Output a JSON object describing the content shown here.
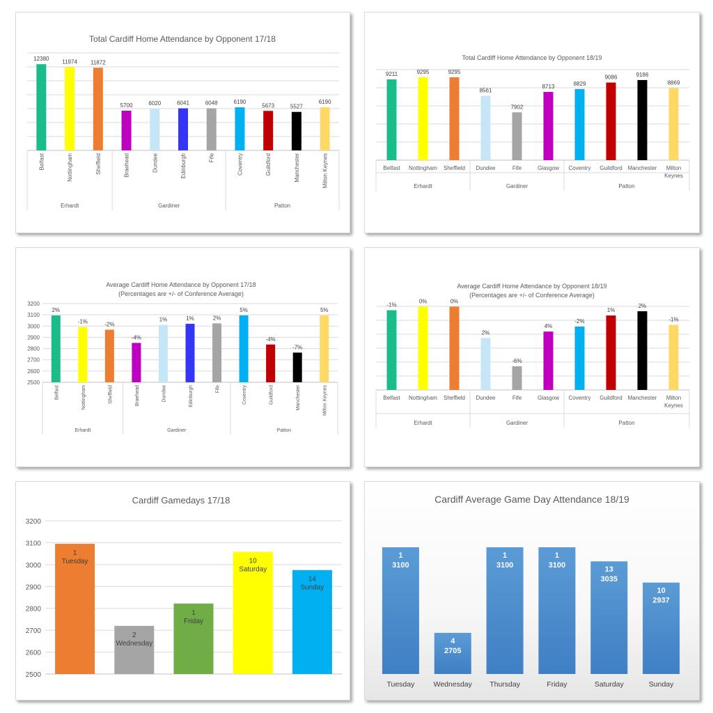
{
  "colors": {
    "Belfast": "#1ABC8C",
    "Nottingham": "#FFFF00",
    "Sheffield": "#ED7D31",
    "Braehead": "#C000C0",
    "Dundee": "#C5E6F7",
    "Edinburgh": "#3535F5",
    "Fife": "#A5A5A5",
    "Glasgow": "#C000C0",
    "Coventry": "#00B0F0",
    "Guildford": "#C00000",
    "Manchester": "#000000",
    "Milton Keynes": "#FFD966",
    "day_blue": "#5B9BD5"
  },
  "chart_data": [
    {
      "id": "total-1718",
      "type": "bar",
      "title": "Total Cardiff Home Attendance by Opponent 17/18",
      "groups": [
        {
          "name": "Erhardt",
          "categories": [
            "Belfast",
            "Nottingham",
            "Sheffield"
          ],
          "values": [
            12380,
            11974,
            11872
          ]
        },
        {
          "name": "Gardiner",
          "categories": [
            "Braehead",
            "Dundee",
            "Edinburgh",
            "Fife"
          ],
          "values": [
            5700,
            6020,
            6041,
            6048
          ]
        },
        {
          "name": "Patton",
          "categories": [
            "Coventry",
            "Guildford",
            "Manchester",
            "Milton Keynes"
          ],
          "values": [
            6190,
            5673,
            5527,
            6190
          ]
        }
      ],
      "data_labels": [
        [
          "12380",
          "11974",
          "11872"
        ],
        [
          "5700",
          "6020",
          "6041",
          "6048"
        ],
        [
          "6190",
          "5673",
          "5527",
          "6190"
        ]
      ],
      "ylim": [
        0,
        14000
      ],
      "grid": true
    },
    {
      "id": "total-1819",
      "type": "bar",
      "title": "Total Cardiff Home Attendance by Opponent 18/19",
      "groups": [
        {
          "name": "Erhardt",
          "categories": [
            "Belfast",
            "Nottingham",
            "Sheffield"
          ],
          "values": [
            9211,
            9295,
            9295
          ]
        },
        {
          "name": "Gardiner",
          "categories": [
            "Dundee",
            "Fife",
            "Glasgow"
          ],
          "values": [
            8561,
            7902,
            8713
          ]
        },
        {
          "name": "Patton",
          "categories": [
            "Coventry",
            "Guildford",
            "Manchester",
            "Milton Keynes"
          ],
          "values": [
            8829,
            9086,
            9186,
            8869
          ]
        }
      ],
      "data_labels": [
        [
          "9211",
          "9295",
          "9295"
        ],
        [
          "8561",
          "7902",
          "8713"
        ],
        [
          "8829",
          "9086",
          "9186",
          "8869"
        ]
      ],
      "ylim": [
        6000,
        9600
      ],
      "grid": true
    },
    {
      "id": "avg-1718",
      "type": "bar",
      "title": "Average Cardiff Home Attendance by Opponent 17/18",
      "subtitle": "(Percentages are +/- of Conference Average)",
      "groups": [
        {
          "name": "Erhardt",
          "categories": [
            "Belfast",
            "Nottingham",
            "Sheffield"
          ],
          "values": [
            3095,
            2993,
            2968
          ]
        },
        {
          "name": "Gardiner",
          "categories": [
            "Braehead",
            "Dundee",
            "Edinburgh",
            "Fife"
          ],
          "values": [
            2850,
            3010,
            3020,
            3024
          ]
        },
        {
          "name": "Patton",
          "categories": [
            "Coventry",
            "Guildford",
            "Manchester",
            "Milton Keynes"
          ],
          "values": [
            3095,
            2836,
            2764,
            3095
          ]
        }
      ],
      "data_labels": [
        [
          "2%",
          "-1%",
          "-2%"
        ],
        [
          "-4%",
          "1%",
          "1%",
          "2%"
        ],
        [
          "5%",
          "-4%",
          "-7%",
          "5%"
        ]
      ],
      "ylim": [
        2500,
        3200
      ],
      "yticks": [
        "2500",
        "2600",
        "2700",
        "2800",
        "2900",
        "3000",
        "3100",
        "3200"
      ],
      "grid": true
    },
    {
      "id": "avg-1819",
      "type": "bar",
      "title": "Average Cardiff Home Attendance by Opponent 18/19",
      "subtitle": "(Percentages are +/- of Conference Average)",
      "groups": [
        {
          "name": "Erhardt",
          "categories": [
            "Belfast",
            "Nottingham",
            "Sheffield"
          ],
          "values": [
            3070,
            3098,
            3098
          ]
        },
        {
          "name": "Gardiner",
          "categories": [
            "Dundee",
            "Fife",
            "Glasgow"
          ],
          "values": [
            2854,
            2634,
            2904
          ]
        },
        {
          "name": "Patton",
          "categories": [
            "Coventry",
            "Guildford",
            "Manchester",
            "Milton Keynes"
          ],
          "values": [
            2943,
            3029,
            3062,
            2956
          ]
        }
      ],
      "data_labels": [
        [
          "-1%",
          "0%",
          "0%"
        ],
        [
          "2%",
          "-6%",
          "4%"
        ],
        [
          "-2%",
          "1%",
          "2%",
          "-1%"
        ]
      ],
      "ylim": [
        2450,
        3100
      ],
      "grid": true
    },
    {
      "id": "gamedays-1718",
      "type": "bar",
      "title": "Cardiff Gamedays 17/18",
      "categories": [
        "Tuesday",
        "Wednesday",
        "Friday",
        "Saturday",
        "Sunday"
      ],
      "values": [
        3095,
        2720,
        2822,
        3058,
        2975
      ],
      "games": [
        "1",
        "2",
        "1",
        "10",
        "14"
      ],
      "colors": [
        "#ED7D31",
        "#A5A5A5",
        "#70AD47",
        "#FFFF00",
        "#00B0F0"
      ],
      "ylim": [
        2500,
        3200
      ],
      "yticks": [
        "2500",
        "2600",
        "2700",
        "2800",
        "2900",
        "3000",
        "3100",
        "3200"
      ],
      "grid": true
    },
    {
      "id": "gameday-1819",
      "type": "bar",
      "title": "Cardiff Average Game Day Attendance 18/19",
      "categories": [
        "Tuesday",
        "Wednesday",
        "Thursday",
        "Friday",
        "Saturday",
        "Sunday"
      ],
      "values": [
        3100,
        2705,
        3100,
        3100,
        3035,
        2937
      ],
      "games": [
        "1",
        "4",
        "1",
        "1",
        "13",
        "10"
      ],
      "value_labels": [
        "3100",
        "2705",
        "3100",
        "3100",
        "3035",
        "2937"
      ],
      "ylim": [
        2515,
        3145
      ],
      "grid": false
    }
  ]
}
